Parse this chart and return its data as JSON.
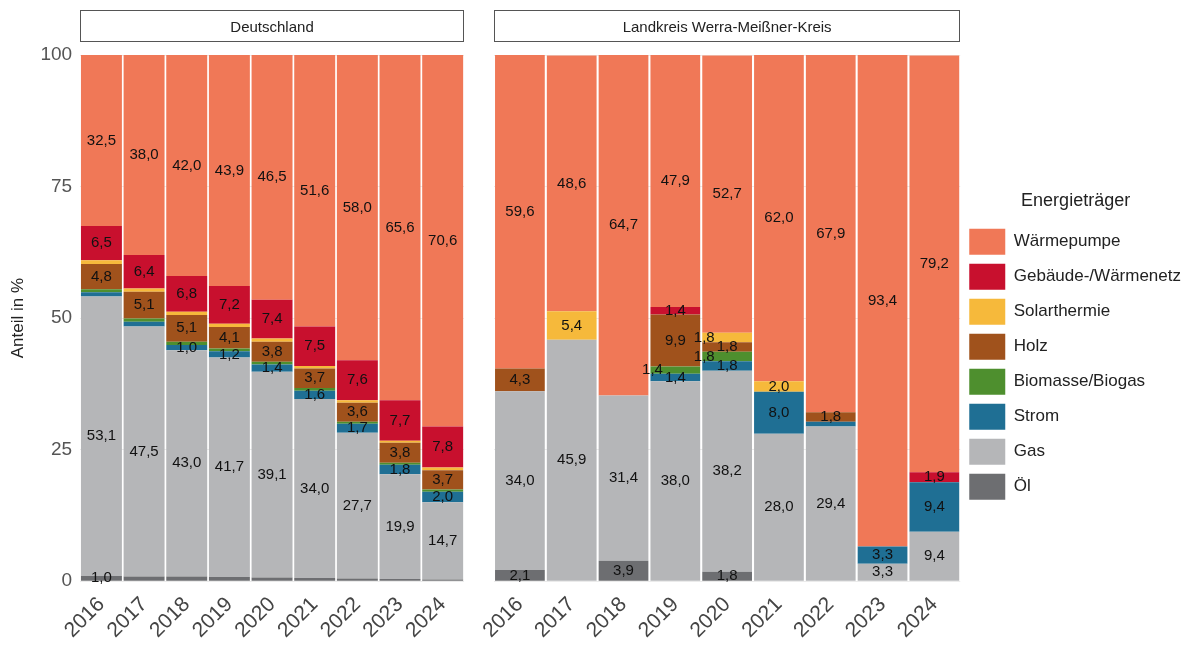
{
  "chart_data": [
    {
      "type": "bar",
      "title": "Deutschland",
      "ylabel": "Anteil in %",
      "stacked": true,
      "grid": "y",
      "legend": false,
      "categories": [
        "2016",
        "2017",
        "2018",
        "2019",
        "2020",
        "2021",
        "2022",
        "2023",
        "2024"
      ],
      "ylim": [
        0,
        100
      ],
      "yticks": [
        0,
        25,
        50,
        75,
        100
      ],
      "series": [
        {
          "color": "#6d6e71",
          "values": [
            1.0,
            0.9,
            0.9,
            0.8,
            0.7,
            0.6,
            0.5,
            0.4,
            0.3
          ],
          "value_labels": [
            "1,0",
            null,
            null,
            null,
            null,
            null,
            null,
            null,
            null
          ]
        },
        {
          "color": "#b5b6b8",
          "values": [
            53.1,
            47.5,
            43.0,
            41.7,
            39.1,
            34.0,
            27.7,
            19.9,
            14.7
          ],
          "value_labels": [
            "53,1",
            "47,5",
            "43,0",
            "41,7",
            "39,1",
            "34,0",
            "27,7",
            "19,9",
            "14,7"
          ]
        },
        {
          "color": "#1f6f94",
          "values": [
            0.8,
            0.9,
            1.0,
            1.2,
            1.4,
            1.6,
            1.7,
            1.8,
            2.0
          ],
          "value_labels": [
            null,
            null,
            "1,0",
            "1,2",
            "1,4",
            "1,6",
            "1,7",
            "1,8",
            "2,0"
          ]
        },
        {
          "color": "#4e8f2e",
          "values": [
            0.6,
            0.6,
            0.6,
            0.5,
            0.5,
            0.5,
            0.4,
            0.4,
            0.4
          ],
          "value_labels": [
            null,
            null,
            null,
            null,
            null,
            null,
            null,
            null,
            null
          ]
        },
        {
          "color": "#a0521c",
          "values": [
            4.8,
            5.1,
            5.1,
            4.1,
            3.8,
            3.7,
            3.6,
            3.8,
            3.7
          ],
          "value_labels": [
            "4,8",
            "5,1",
            "5,1",
            "4,1",
            "3,8",
            "3,7",
            "3,6",
            "3,8",
            "3,7"
          ]
        },
        {
          "color": "#f6b93b",
          "values": [
            0.7,
            0.6,
            0.6,
            0.6,
            0.6,
            0.5,
            0.5,
            0.4,
            0.5
          ],
          "value_labels": [
            null,
            null,
            null,
            null,
            null,
            null,
            null,
            null,
            null
          ]
        },
        {
          "color": "#c8102e",
          "values": [
            6.5,
            6.4,
            6.8,
            7.2,
            7.4,
            7.5,
            7.6,
            7.7,
            7.8
          ],
          "value_labels": [
            "6,5",
            "6,4",
            "6,8",
            "7,2",
            "7,4",
            "7,5",
            "7,6",
            "7,7",
            "7,8"
          ]
        },
        {
          "color": "#f07857",
          "values": [
            32.5,
            38.0,
            42.0,
            43.9,
            46.5,
            51.6,
            58.0,
            65.6,
            70.6
          ],
          "value_labels": [
            "32,5",
            "38,0",
            "42,0",
            "43,9",
            "46,5",
            "51,6",
            "58,0",
            "65,6",
            "70,6"
          ]
        }
      ]
    },
    {
      "type": "bar",
      "title": "Landkreis Werra-Meißner-Kreis",
      "stacked": true,
      "grid": "y",
      "legend": "right",
      "legend_title": "Energieträger",
      "tick_labels": "x",
      "categories": [
        "2016",
        "2017",
        "2018",
        "2019",
        "2020",
        "2021",
        "2022",
        "2023",
        "2024"
      ],
      "ylim": [
        0,
        100
      ],
      "yticks": [
        0,
        25,
        50,
        75,
        100
      ],
      "series": [
        {
          "name": "Öl",
          "color": "#6d6e71",
          "values": [
            2.1,
            null,
            3.9,
            null,
            1.8,
            null,
            null,
            null,
            null
          ],
          "value_labels": [
            "2,1",
            null,
            "3,9",
            null,
            "1,8",
            null,
            null,
            null,
            null
          ]
        },
        {
          "name": "Gas",
          "color": "#b5b6b8",
          "values": [
            34.0,
            45.9,
            31.4,
            38.0,
            38.2,
            28.0,
            29.4,
            3.3,
            9.4
          ],
          "value_labels": [
            "34,0",
            "45,9",
            "31,4",
            "38,0",
            "38,2",
            "28,0",
            "29,4",
            "3,3",
            "9,4"
          ]
        },
        {
          "name": "Strom",
          "color": "#1f6f94",
          "values": [
            null,
            null,
            null,
            1.4,
            1.8,
            8.0,
            0.9,
            3.3,
            9.4
          ],
          "value_labels": [
            null,
            null,
            null,
            "1,4",
            "1,8",
            "8,0",
            null,
            "3,3",
            "9,4"
          ]
        },
        {
          "name": "Biomasse/Biogas",
          "color": "#4e8f2e",
          "values": [
            null,
            null,
            null,
            1.4,
            1.8,
            null,
            null,
            null,
            null
          ],
          "value_labels": [
            null,
            null,
            null,
            "1,4",
            "1,8",
            null,
            null,
            null,
            null
          ]
        },
        {
          "name": "Holz",
          "color": "#a0521c",
          "values": [
            4.3,
            null,
            null,
            9.9,
            1.8,
            null,
            1.8,
            null,
            null
          ],
          "value_labels": [
            "4,3",
            null,
            null,
            "9,9",
            "1,8",
            null,
            "1,8",
            null,
            null
          ]
        },
        {
          "name": "Solarthermie",
          "color": "#f6b93b",
          "values": [
            null,
            5.4,
            null,
            null,
            1.8,
            2.0,
            null,
            null,
            null
          ],
          "value_labels": [
            null,
            "5,4",
            null,
            null,
            "1,8",
            "2,0",
            null,
            null,
            null
          ]
        },
        {
          "name": "Gebäude-/Wärmenetz",
          "color": "#c8102e",
          "values": [
            null,
            null,
            null,
            1.4,
            null,
            null,
            null,
            null,
            1.9
          ],
          "value_labels": [
            null,
            null,
            null,
            "1,4",
            null,
            null,
            null,
            null,
            "1,9"
          ]
        },
        {
          "name": "Wärmepumpe",
          "color": "#f07857",
          "values": [
            59.6,
            48.6,
            64.7,
            47.9,
            52.7,
            62.0,
            67.9,
            93.4,
            79.2
          ],
          "value_labels": [
            "59,6",
            "48,6",
            "64,7",
            "47,9",
            "52,7",
            "62,0",
            "67,9",
            "93,4",
            "79,2"
          ]
        }
      ]
    }
  ]
}
